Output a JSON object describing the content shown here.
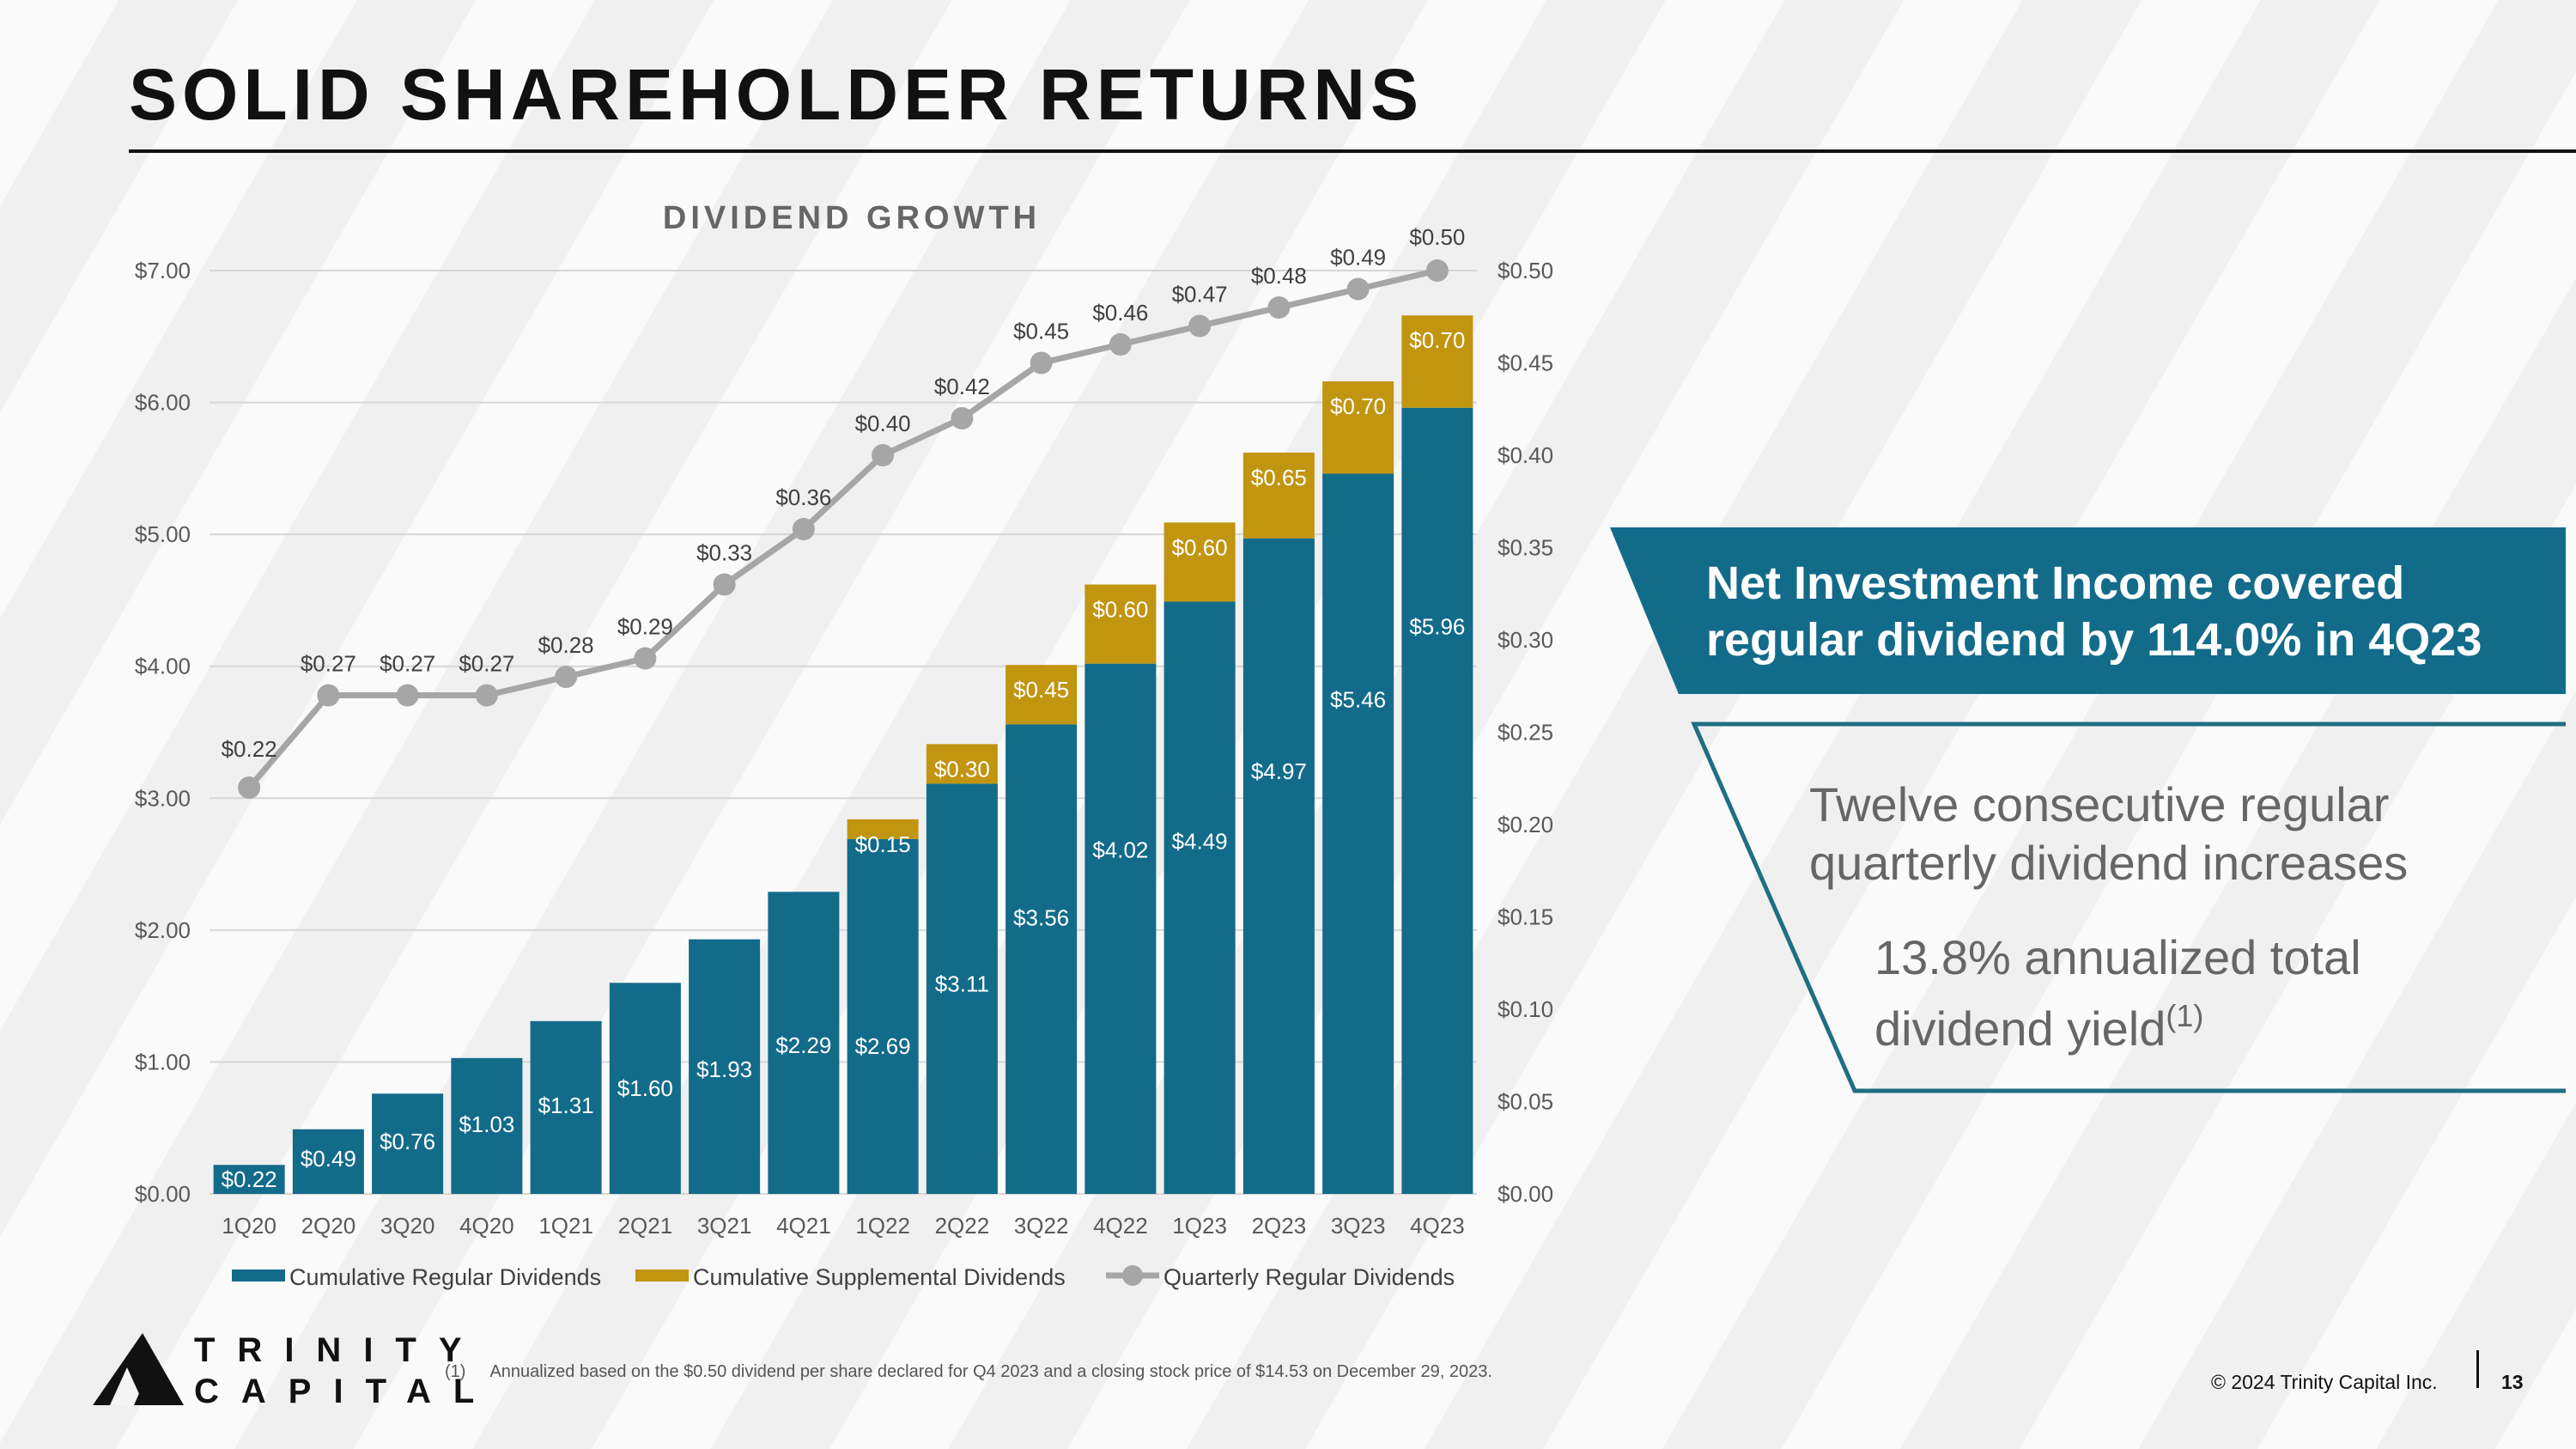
{
  "page": {
    "title": "SOLID SHAREHOLDER RETURNS",
    "footnote_marker": "(1)",
    "footnote_text": "Annualized based on the $0.50 dividend per share declared for Q4 2023 and a closing stock price of $14.53 on December 29, 2023.",
    "copyright": "© 2024 Trinity Capital Inc.",
    "page_number": "13",
    "logo": {
      "line1": "TRINITY",
      "line2": "CAPITAL"
    }
  },
  "callouts": {
    "primary": "Net Investment Income covered regular dividend by 114.0% in 4Q23",
    "secondary": "Twelve consecutive regular quarterly dividend increases",
    "tertiary": "13.8% annualized total dividend yield",
    "tertiary_sup": "(1)"
  },
  "colors": {
    "regular": "#136b8a",
    "supplemental": "#c29510",
    "line": "#a6a6a6",
    "callout_fill": "#136b8a",
    "callout_outline": "#1f6f84"
  },
  "chart_data": {
    "type": "bar",
    "title": "DIVIDEND GROWTH",
    "categories": [
      "1Q20",
      "2Q20",
      "3Q20",
      "4Q20",
      "1Q21",
      "2Q21",
      "3Q21",
      "4Q21",
      "1Q22",
      "2Q22",
      "3Q22",
      "4Q22",
      "1Q23",
      "2Q23",
      "3Q23",
      "4Q23"
    ],
    "series": [
      {
        "name": "Cumulative Regular Dividends",
        "kind": "stacked-bar",
        "axis": "left",
        "values": [
          0.22,
          0.49,
          0.76,
          1.03,
          1.31,
          1.6,
          1.93,
          2.29,
          2.69,
          3.11,
          3.56,
          4.02,
          4.49,
          4.97,
          5.46,
          5.96
        ],
        "labels": [
          "$0.22",
          "$0.49",
          "$0.76",
          "$1.03",
          "$1.31",
          "$1.60",
          "$1.93",
          "$2.29",
          "$2.69",
          "$3.11",
          "$3.56",
          "$4.02",
          "$4.49",
          "$4.97",
          "$5.46",
          "$5.96"
        ]
      },
      {
        "name": "Cumulative Supplemental Dividends",
        "kind": "stacked-bar",
        "axis": "left",
        "values": [
          0,
          0,
          0,
          0,
          0,
          0,
          0,
          0,
          0.15,
          0.3,
          0.45,
          0.6,
          0.6,
          0.65,
          0.7,
          0.7
        ],
        "labels": [
          "",
          "",
          "",
          "",
          "",
          "",
          "",
          "",
          "$0.15",
          "$0.30",
          "$0.45",
          "$0.60",
          "$0.60",
          "$0.65",
          "$0.70",
          "$0.70"
        ]
      },
      {
        "name": "Quarterly Regular Dividends",
        "kind": "line",
        "axis": "right",
        "values": [
          0.22,
          0.27,
          0.27,
          0.27,
          0.28,
          0.29,
          0.33,
          0.36,
          0.4,
          0.42,
          0.45,
          0.46,
          0.47,
          0.48,
          0.49,
          0.5
        ],
        "labels": [
          "$0.22",
          "$0.27",
          "$0.27",
          "$0.27",
          "$0.28",
          "$0.29",
          "$0.33",
          "$0.36",
          "$0.40",
          "$0.42",
          "$0.45",
          "$0.46",
          "$0.47",
          "$0.48",
          "$0.49",
          "$0.50"
        ]
      }
    ],
    "left_axis": {
      "ylim": [
        0,
        7
      ],
      "ticks": [
        "$0.00",
        "$1.00",
        "$2.00",
        "$3.00",
        "$4.00",
        "$5.00",
        "$6.00",
        "$7.00"
      ]
    },
    "right_axis": {
      "ylim": [
        0,
        0.5
      ],
      "ticks": [
        "$0.00",
        "$0.05",
        "$0.10",
        "$0.15",
        "$0.20",
        "$0.25",
        "$0.30",
        "$0.35",
        "$0.40",
        "$0.45",
        "$0.50"
      ]
    },
    "grid": true,
    "legend_position": "bottom"
  }
}
